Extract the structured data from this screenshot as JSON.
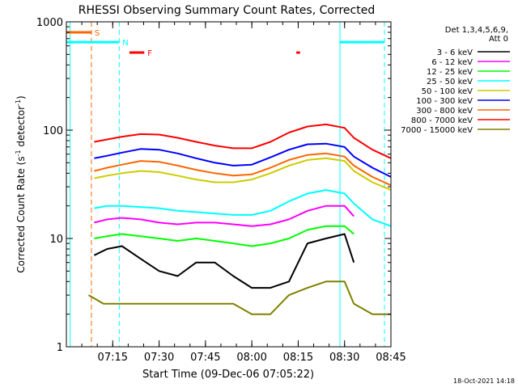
{
  "chart_data": {
    "type": "line",
    "title": "RHESSI Observing Summary Count Rates, Corrected",
    "xlabel": "Start Time (09-Dec-06 07:05:22)",
    "ylabel_parts": [
      "Corrected Count Rate (s",
      "-1",
      " detector",
      "-1",
      ")"
    ],
    "ylabel": "Corrected Count Rate (s-1 detector-1)",
    "yscale": "log",
    "ylim": [
      1,
      1000
    ],
    "xlim": [
      7.0,
      8.75
    ],
    "ytick_values": [
      1,
      10,
      100,
      1000
    ],
    "ytick_labels": [
      "1",
      "10",
      "100",
      "1000"
    ],
    "xtick_values": [
      7.25,
      7.5,
      7.75,
      8.0,
      8.25,
      8.5,
      8.75
    ],
    "xtick_labels": [
      "07:15",
      "07:30",
      "07:45",
      "08:00",
      "08:15",
      "08:30",
      "08:45"
    ],
    "footer_date": "18-Oct-2021 14:18",
    "legend_header": [
      "Det 1,3,4,5,6,9,",
      "Att 0"
    ],
    "legend_placement": "right",
    "series": [
      {
        "name": "3 - 6 keV",
        "color": "#000000",
        "x": [
          7.15,
          7.22,
          7.3,
          7.4,
          7.5,
          7.6,
          7.7,
          7.8,
          7.9,
          8.0,
          8.1,
          8.2,
          8.3,
          8.4,
          8.5,
          8.55
        ],
        "y": [
          7,
          8,
          8.5,
          6.5,
          5,
          4.5,
          6,
          6,
          4.5,
          3.5,
          3.5,
          4,
          9,
          10,
          11,
          6
        ]
      },
      {
        "name": "6 - 12 keV",
        "color": "#ff00ff",
        "x": [
          7.15,
          7.22,
          7.3,
          7.4,
          7.5,
          7.6,
          7.7,
          7.8,
          7.9,
          8.0,
          8.1,
          8.2,
          8.3,
          8.4,
          8.5,
          8.55
        ],
        "y": [
          14,
          15,
          15.5,
          15,
          14,
          13.5,
          14,
          14,
          13.5,
          13,
          13.5,
          15,
          18,
          20,
          20,
          16
        ]
      },
      {
        "name": "12 - 25 keV",
        "color": "#00ff00",
        "x": [
          7.15,
          7.22,
          7.3,
          7.4,
          7.5,
          7.6,
          7.7,
          7.8,
          7.9,
          8.0,
          8.1,
          8.2,
          8.3,
          8.4,
          8.5,
          8.55
        ],
        "y": [
          10,
          10.5,
          11,
          10.5,
          10,
          9.5,
          10,
          9.5,
          9,
          8.5,
          9,
          10,
          12,
          13,
          13,
          11
        ]
      },
      {
        "name": "25 - 50 keV",
        "color": "#00ffff",
        "x": [
          7.15,
          7.22,
          7.3,
          7.4,
          7.5,
          7.6,
          7.7,
          7.8,
          7.9,
          8.0,
          8.1,
          8.2,
          8.3,
          8.4,
          8.5,
          8.55,
          8.65,
          8.75
        ],
        "y": [
          19,
          20,
          20,
          19.5,
          19,
          18,
          17.5,
          17,
          16.5,
          16.5,
          18,
          22,
          26,
          28,
          26,
          21,
          15,
          13
        ]
      },
      {
        "name": "50 - 100 keV",
        "color": "#cccc00",
        "x": [
          7.15,
          7.22,
          7.3,
          7.4,
          7.5,
          7.6,
          7.7,
          7.8,
          7.9,
          8.0,
          8.1,
          8.2,
          8.3,
          8.4,
          8.5,
          8.55,
          8.65,
          8.75
        ],
        "y": [
          36,
          38,
          40,
          42,
          41,
          38,
          35,
          33,
          33,
          35,
          40,
          47,
          53,
          55,
          52,
          42,
          33,
          28
        ]
      },
      {
        "name": "100 - 300 keV",
        "color": "#0000ff",
        "x": [
          7.15,
          7.22,
          7.3,
          7.4,
          7.5,
          7.6,
          7.7,
          7.8,
          7.9,
          8.0,
          8.1,
          8.2,
          8.3,
          8.4,
          8.5,
          8.55,
          8.65,
          8.75
        ],
        "y": [
          55,
          58,
          62,
          67,
          66,
          61,
          55,
          50,
          47,
          48,
          56,
          66,
          74,
          75,
          70,
          57,
          45,
          37
        ]
      },
      {
        "name": "300 - 800 keV",
        "color": "#ff6600",
        "x": [
          7.15,
          7.22,
          7.3,
          7.4,
          7.5,
          7.6,
          7.7,
          7.8,
          7.9,
          8.0,
          8.1,
          8.2,
          8.3,
          8.4,
          8.5,
          8.55,
          8.65,
          8.75
        ],
        "y": [
          42,
          45,
          48,
          52,
          51,
          47,
          43,
          40,
          38,
          39,
          45,
          53,
          59,
          61,
          57,
          47,
          37,
          31
        ]
      },
      {
        "name": "800 - 7000 keV",
        "color": "#ff0000",
        "x": [
          7.15,
          7.22,
          7.3,
          7.4,
          7.5,
          7.6,
          7.7,
          7.8,
          7.9,
          8.0,
          8.1,
          8.2,
          8.3,
          8.4,
          8.5,
          8.55,
          8.65,
          8.75
        ],
        "y": [
          78,
          82,
          87,
          92,
          91,
          85,
          78,
          72,
          68,
          68,
          78,
          95,
          108,
          113,
          105,
          85,
          66,
          55
        ]
      },
      {
        "name": "7000 - 15000 keV",
        "color": "#808000",
        "x": [
          7.12,
          7.2,
          7.3,
          7.4,
          7.5,
          7.6,
          7.7,
          7.8,
          7.9,
          8.0,
          8.1,
          8.2,
          8.3,
          8.4,
          8.5,
          8.55,
          8.65,
          8.75
        ],
        "y": [
          3,
          2.5,
          2.5,
          2.5,
          2.5,
          2.5,
          2.5,
          2.5,
          2.5,
          2,
          2,
          3,
          3.5,
          4,
          4,
          2.5,
          2,
          2
        ]
      }
    ],
    "flag_lines": [
      {
        "name": "attenuator-line",
        "x": 7.02,
        "color": "#00ffff",
        "style": "solid"
      },
      {
        "name": "saa-start-line",
        "x": 7.135,
        "color": "#ff6600",
        "style": "dashed"
      },
      {
        "name": "night-end-line",
        "x": 7.285,
        "color": "#00ffff",
        "style": "dashed"
      },
      {
        "name": "night-start-line",
        "x": 8.475,
        "color": "#00ffff",
        "style": "solid"
      },
      {
        "name": "night-end-line-2",
        "x": 8.715,
        "color": "#00ffff",
        "style": "dashed"
      }
    ],
    "flag_bars": [
      {
        "name": "saa-bar",
        "x0": 7.0,
        "x1": 7.135,
        "y": 800,
        "color": "#ff6600",
        "label": "S"
      },
      {
        "name": "night-bar",
        "x0": 7.0,
        "x1": 7.285,
        "y": 650,
        "color": "#00ffff",
        "label": "N"
      },
      {
        "name": "night-bar-2",
        "x0": 8.475,
        "x1": 8.715,
        "y": 650,
        "color": "#00ffff",
        "label": ""
      },
      {
        "name": "flare-bar",
        "x0": 7.34,
        "x1": 7.42,
        "y": 520,
        "color": "#ff0000",
        "label": "F"
      },
      {
        "name": "flare-bar-2",
        "x0": 8.24,
        "x1": 8.26,
        "y": 520,
        "color": "#ff0000",
        "label": ""
      }
    ]
  }
}
